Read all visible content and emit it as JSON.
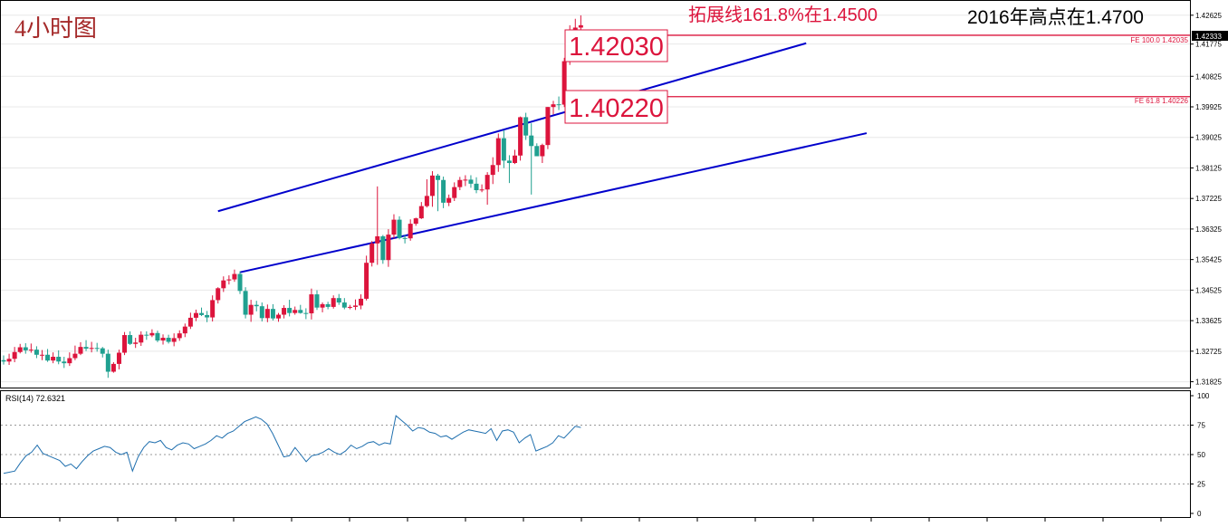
{
  "chart_data": {
    "type": "candlestick",
    "title": "4小时图",
    "annotations": {
      "extension_note": "拓展线161.8%在1.4500",
      "high_note": "2016年高点在1.4700",
      "level_box_1": "1.42030",
      "level_box_2": "1.40220",
      "fe_label_1": "FE 100.0  1.42035",
      "fe_label_2": "FE 61.8  1.40226"
    },
    "price_axis": {
      "ticks": [
        "1.42625",
        "1.41775",
        "1.40825",
        "1.39925",
        "1.39025",
        "1.38125",
        "1.37225",
        "1.36325",
        "1.35425",
        "1.34525",
        "1.33625",
        "1.32725",
        "1.31825"
      ],
      "current_price": "1.42333",
      "ylim": [
        1.3168,
        1.4302
      ]
    },
    "fib_levels": [
      1.42035,
      1.40226
    ],
    "channel": {
      "upper": [
        [
          39,
          1.3685
        ],
        [
          146,
          1.418
        ]
      ],
      "lower": [
        [
          43,
          1.3505
        ],
        [
          157,
          1.3915
        ]
      ]
    },
    "rsi": {
      "label": "RSI(14) 72.6321",
      "ticks": [
        "100",
        "75",
        "50",
        "25",
        "0"
      ],
      "levels": [
        75,
        50,
        25
      ],
      "values": [
        34,
        35,
        36,
        43,
        49,
        52,
        58,
        51,
        49,
        47,
        45,
        40,
        42,
        38,
        44,
        49,
        53,
        55,
        57,
        56,
        52,
        50,
        52,
        36,
        48,
        56,
        61,
        60,
        62,
        56,
        54,
        58,
        60,
        59,
        55,
        57,
        59,
        62,
        66,
        64,
        68,
        70,
        74,
        78,
        80,
        82,
        80,
        76,
        68,
        58,
        48,
        49,
        56,
        50,
        44,
        49,
        50,
        52,
        55,
        52,
        50,
        53,
        58,
        55,
        57,
        60,
        61,
        58,
        60,
        59,
        83,
        79,
        75,
        70,
        73,
        72,
        69,
        68,
        65,
        66,
        63,
        66,
        69,
        71,
        70,
        69,
        68,
        72,
        62,
        70,
        71,
        69,
        60,
        64,
        67,
        53,
        55,
        57,
        60,
        66,
        64,
        69,
        74,
        73
      ]
    },
    "candles": {
      "open": [
        1.3246,
        1.3242,
        1.325,
        1.327,
        1.3284,
        1.3275,
        1.3277,
        1.3262,
        1.3262,
        1.3245,
        1.3256,
        1.3242,
        1.3237,
        1.3252,
        1.3265,
        1.3285,
        1.328,
        1.3282,
        1.3281,
        1.3265,
        1.3212,
        1.3235,
        1.3268,
        1.332,
        1.3294,
        1.3298,
        1.3321,
        1.3319,
        1.3326,
        1.3304,
        1.3312,
        1.33,
        1.3311,
        1.3325,
        1.3345,
        1.3371,
        1.3385,
        1.3379,
        1.3372,
        1.3423,
        1.3458,
        1.3481,
        1.3484,
        1.35,
        1.345,
        1.338,
        1.3409,
        1.3405,
        1.337,
        1.3397,
        1.3369,
        1.338,
        1.34,
        1.3385,
        1.3394,
        1.3385,
        1.3384,
        1.344,
        1.3401,
        1.3411,
        1.3403,
        1.3429,
        1.3416,
        1.3401,
        1.3403,
        1.3407,
        1.3427,
        1.3533,
        1.359,
        1.3611,
        1.3541,
        1.3616,
        1.366,
        1.3606,
        1.3605,
        1.3648,
        1.3664,
        1.37,
        1.373,
        1.379,
        1.3777,
        1.371,
        1.3724,
        1.3756,
        1.3777,
        1.3778,
        1.3766,
        1.3747,
        1.3749,
        1.3792,
        1.3821,
        1.39,
        1.3834,
        1.3827,
        1.3849,
        1.3962,
        1.3908,
        1.3877,
        1.3847,
        1.388,
        1.3992,
        1.4,
        1.3999,
        1.4127,
        1.4217,
        1.4226
      ],
      "high": [
        1.326,
        1.3265,
        1.3285,
        1.3294,
        1.3296,
        1.3295,
        1.3287,
        1.3276,
        1.3279,
        1.3269,
        1.3275,
        1.3256,
        1.3269,
        1.3289,
        1.3299,
        1.3305,
        1.33,
        1.3297,
        1.3285,
        1.3277,
        1.324,
        1.3277,
        1.3329,
        1.3331,
        1.3312,
        1.3331,
        1.3331,
        1.3337,
        1.3333,
        1.3322,
        1.3321,
        1.3325,
        1.3334,
        1.3354,
        1.3386,
        1.3395,
        1.3401,
        1.3391,
        1.3437,
        1.3461,
        1.3493,
        1.3496,
        1.3513,
        1.3508,
        1.3461,
        1.3424,
        1.3421,
        1.3416,
        1.341,
        1.3411,
        1.3385,
        1.3408,
        1.3424,
        1.3404,
        1.3409,
        1.3399,
        1.3457,
        1.3452,
        1.3416,
        1.3418,
        1.3437,
        1.3441,
        1.3429,
        1.3409,
        1.3425,
        1.344,
        1.3554,
        1.3597,
        1.3758,
        1.3615,
        1.3632,
        1.3676,
        1.367,
        1.3615,
        1.3661,
        1.3666,
        1.3712,
        1.3779,
        1.3803,
        1.3795,
        1.3787,
        1.3734,
        1.377,
        1.3786,
        1.3791,
        1.3791,
        1.3785,
        1.3764,
        1.38,
        1.3844,
        1.3914,
        1.3924,
        1.385,
        1.3866,
        1.3964,
        1.3975,
        1.3944,
        1.3885,
        1.3884,
        1.3992,
        1.401,
        1.4023,
        1.4137,
        1.4233,
        1.4252,
        1.4262
      ],
      "low": [
        1.3233,
        1.3232,
        1.324,
        1.3266,
        1.3265,
        1.3268,
        1.3252,
        1.3246,
        1.3241,
        1.3237,
        1.3234,
        1.3223,
        1.3229,
        1.3246,
        1.3261,
        1.3273,
        1.3269,
        1.3271,
        1.3254,
        1.3194,
        1.3209,
        1.3219,
        1.3261,
        1.3291,
        1.3282,
        1.3288,
        1.3306,
        1.3314,
        1.3299,
        1.3292,
        1.3295,
        1.3287,
        1.3303,
        1.3314,
        1.3338,
        1.3361,
        1.3376,
        1.3358,
        1.336,
        1.3413,
        1.3447,
        1.3469,
        1.3477,
        1.3441,
        1.3369,
        1.3359,
        1.339,
        1.336,
        1.3358,
        1.3363,
        1.3359,
        1.3369,
        1.3375,
        1.338,
        1.3383,
        1.3367,
        1.3366,
        1.3394,
        1.3387,
        1.3396,
        1.3398,
        1.3409,
        1.3396,
        1.3396,
        1.3394,
        1.3396,
        1.3422,
        1.3522,
        1.3527,
        1.353,
        1.3521,
        1.3604,
        1.3602,
        1.359,
        1.3598,
        1.3642,
        1.3662,
        1.3696,
        1.3698,
        1.3685,
        1.3694,
        1.37,
        1.3715,
        1.3747,
        1.3759,
        1.3754,
        1.3738,
        1.3741,
        1.3704,
        1.3765,
        1.3801,
        1.3812,
        1.3768,
        1.3824,
        1.3834,
        1.3895,
        1.3734,
        1.3859,
        1.3827,
        1.3868,
        1.397,
        1.3983,
        1.3992,
        1.4116,
        1.4189,
        1.418
      ],
      "close": [
        1.3242,
        1.325,
        1.327,
        1.3284,
        1.3275,
        1.3277,
        1.3262,
        1.3262,
        1.3245,
        1.3256,
        1.3242,
        1.3237,
        1.3252,
        1.3265,
        1.3285,
        1.328,
        1.3282,
        1.3281,
        1.3265,
        1.3212,
        1.3235,
        1.3268,
        1.332,
        1.3294,
        1.3298,
        1.3321,
        1.3319,
        1.3326,
        1.3304,
        1.3312,
        1.33,
        1.3311,
        1.3325,
        1.3345,
        1.3371,
        1.3385,
        1.3379,
        1.3372,
        1.3423,
        1.3458,
        1.3481,
        1.3484,
        1.35,
        1.345,
        1.338,
        1.3409,
        1.3405,
        1.337,
        1.3397,
        1.3369,
        1.338,
        1.34,
        1.3385,
        1.3394,
        1.3385,
        1.3384,
        1.344,
        1.3401,
        1.3411,
        1.3403,
        1.3429,
        1.3416,
        1.3401,
        1.3403,
        1.3407,
        1.3427,
        1.3533,
        1.359,
        1.3611,
        1.3541,
        1.3616,
        1.366,
        1.3606,
        1.3605,
        1.3648,
        1.3664,
        1.37,
        1.373,
        1.379,
        1.3777,
        1.371,
        1.3724,
        1.3756,
        1.3777,
        1.3778,
        1.3766,
        1.3747,
        1.3749,
        1.3792,
        1.3821,
        1.39,
        1.3834,
        1.3827,
        1.3849,
        1.3962,
        1.3908,
        1.3877,
        1.3847,
        1.388,
        1.3992,
        1.4,
        1.3999,
        1.4127,
        1.4217,
        1.4226,
        1.4233
      ]
    },
    "colors": {
      "bull": "#dc143c",
      "bear": "#20a090",
      "channel": "#0000cc",
      "fib": "#dc143c",
      "rsi": "#1f6fae",
      "title": "#a52a2a",
      "note": "#dc143c"
    }
  }
}
